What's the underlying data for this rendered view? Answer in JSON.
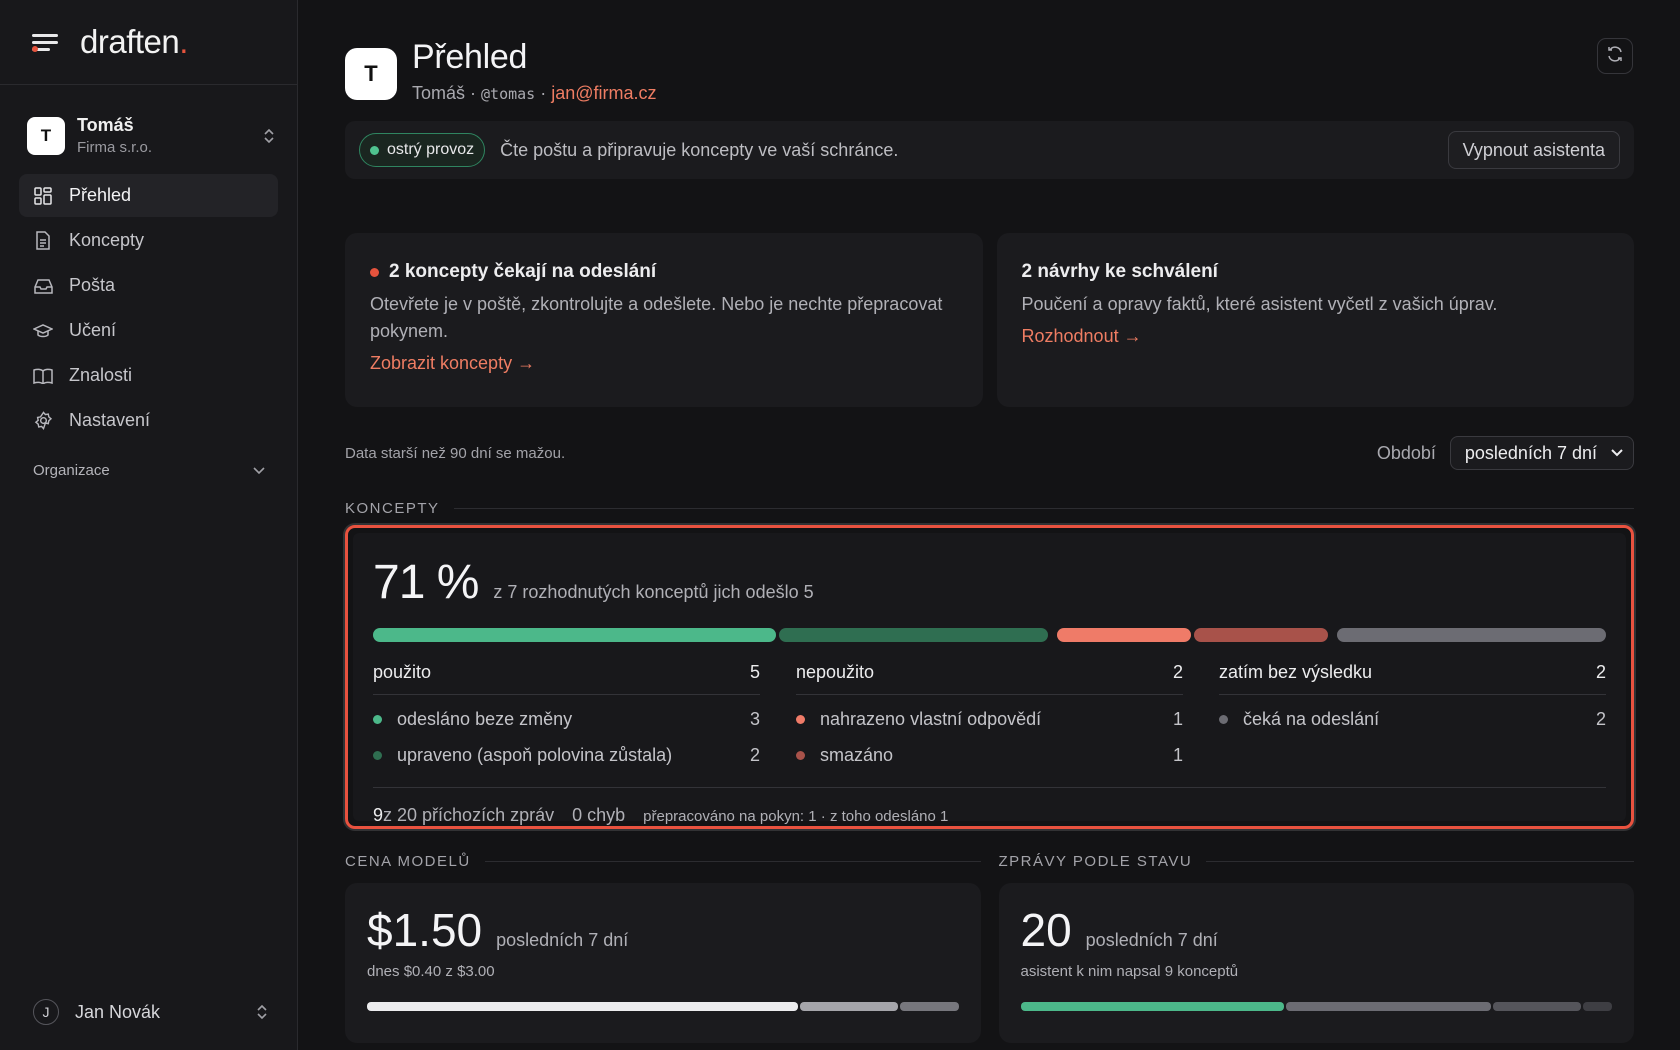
{
  "brand": {
    "name": "draften",
    "dot": "."
  },
  "org": {
    "initial": "T",
    "name": "Tomáš",
    "company": "Firma s.r.o."
  },
  "nav": [
    {
      "label": "Přehled",
      "icon": "grid-icon",
      "active": true
    },
    {
      "label": "Koncepty",
      "icon": "document-icon"
    },
    {
      "label": "Pošta",
      "icon": "inbox-icon"
    },
    {
      "label": "Učení",
      "icon": "graduation-cap-icon"
    },
    {
      "label": "Znalosti",
      "icon": "book-icon"
    },
    {
      "label": "Nastavení",
      "icon": "gear-icon"
    }
  ],
  "org_section": "Organizace",
  "user": {
    "initial": "J",
    "name": "Jan Novák"
  },
  "header": {
    "initial": "T",
    "title": "Přehled",
    "name": "Tomáš",
    "sep": " · ",
    "handle": "@tomas",
    "email": "jan@firma.cz"
  },
  "status": {
    "badge": "ostrý provoz",
    "text": "Čte poštu a připravuje koncepty ve vaší schránce.",
    "button": "Vypnout asistenta"
  },
  "cards": [
    {
      "title": "2 koncepty čekají na odeslání",
      "desc": "Otevřete je v poště, zkontrolujte a odešlete. Nebo je nechte přepracovat pokynem.",
      "link": "Zobrazit koncepty →"
    },
    {
      "title": "2 návrhy ke schválení",
      "desc": "Poučení a opravy faktů, které asistent vyčetl z vašich úprav.",
      "link": "Rozhodnout →"
    }
  ],
  "filter": {
    "note": "Data starší než 90 dní se mažou.",
    "period_label": "Období",
    "period_value": "posledních 7 dní"
  },
  "koncepty": {
    "heading": "KONCEPTY",
    "rate": "71 %",
    "rate_desc": "z 7 rozhodnutých konceptů jich odešlo 5",
    "segments": [
      {
        "value": 3,
        "color": "#4cb88a"
      },
      {
        "value": 2,
        "color": "#2f6e51"
      },
      {
        "value": 1,
        "color": "#ef7b68"
      },
      {
        "value": 1,
        "color": "#a8524a"
      },
      {
        "value": 2,
        "color": "#6c6c73"
      }
    ],
    "groups": [
      {
        "label": "použito",
        "count": "5",
        "rows": [
          {
            "label": "odesláno beze změny",
            "count": "3",
            "color": "#4cb88a"
          },
          {
            "label": "upraveno (aspoň polovina zůstala)",
            "count": "2",
            "color": "#2f6e51"
          }
        ]
      },
      {
        "label": "nepoužito",
        "count": "2",
        "rows": [
          {
            "label": "nahrazeno vlastní odpovědí",
            "count": "1",
            "color": "#ef7b68"
          },
          {
            "label": "smazáno",
            "count": "1",
            "color": "#a8524a"
          }
        ]
      },
      {
        "label": "zatím bez výsledku",
        "count": "2",
        "rows": [
          {
            "label": "čeká na odeslání",
            "count": "2",
            "color": "#6c6c73"
          }
        ]
      }
    ],
    "foot_count": "9",
    "foot_rest": " z 20 příchozích zpráv",
    "foot_errors": "0 chyb",
    "foot_note": "přepracováno na pokyn: 1 · z toho odesláno 1"
  },
  "cost": {
    "heading": "CENA MODELŮ",
    "value": "$1.50",
    "period": "posledních 7 dní",
    "sub": "dnes $0.40 z $3.00",
    "segments": [
      {
        "value": 2.2,
        "color": "#ececee"
      },
      {
        "value": 0.5,
        "color": "#a5a5aa"
      },
      {
        "value": 0.3,
        "color": "#77777d"
      }
    ]
  },
  "messages": {
    "heading": "ZPRÁVY PODLE STAVU",
    "value": "20",
    "period": "posledních 7 dní",
    "sub": "asistent k nim napsal 9 konceptů",
    "segments": [
      {
        "value": 9,
        "color": "#4cb88a"
      },
      {
        "value": 7,
        "color": "#6c6c73"
      },
      {
        "value": 3,
        "color": "#55555b"
      },
      {
        "value": 1,
        "color": "#3e3e43"
      }
    ]
  }
}
